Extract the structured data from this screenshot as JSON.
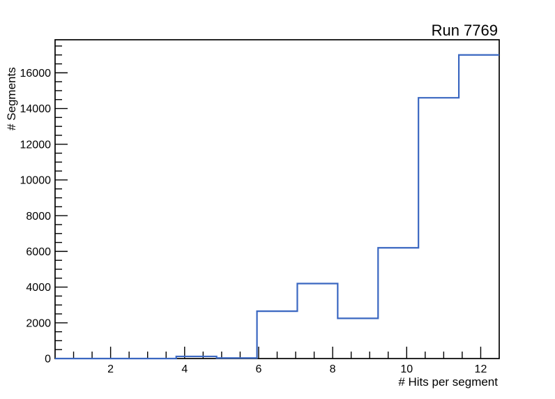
{
  "page": {
    "background": "#ffffff"
  },
  "chart_data": {
    "type": "line",
    "subtype": "step-histogram",
    "title": "Run 7769",
    "xlabel": "# Hits per segment",
    "ylabel": "# Segments",
    "xlim": [
      0.5,
      12.5
    ],
    "ylim": [
      0,
      17850
    ],
    "bin_edges": [
      0.5,
      1.591,
      2.682,
      3.773,
      4.864,
      5.955,
      7.045,
      8.136,
      9.227,
      10.318,
      11.409,
      12.5
    ],
    "counts": [
      0,
      0,
      0,
      120,
      30,
      2650,
      4200,
      2250,
      6200,
      14600,
      17000
    ],
    "x_major_ticks": [
      2,
      4,
      6,
      8,
      10,
      12
    ],
    "x_minor_step": 0.5,
    "y_major_ticks": [
      0,
      2000,
      4000,
      6000,
      8000,
      10000,
      12000,
      14000,
      16000
    ],
    "y_minor_step": 500,
    "grid": false,
    "legend_position": "none",
    "colors": {
      "line": "#3a67c1",
      "axis": "#000000",
      "text": "#000000",
      "background": "#ffffff"
    }
  }
}
